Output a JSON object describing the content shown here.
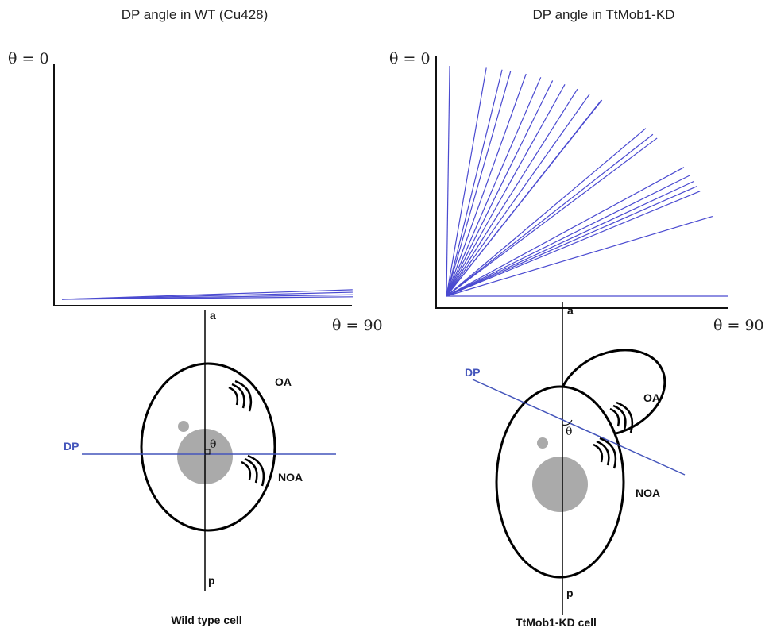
{
  "panels": [
    {
      "title": "DP angle in WT (Cu428)",
      "theta0_label": "θ = 0",
      "theta90_label": "θ = 90",
      "angles": [
        88.1,
        88.6,
        89.1,
        89.5
      ]
    },
    {
      "title": "DP angle in TtMob1-KD",
      "theta0_label": "θ = 0",
      "theta90_label": "θ = 90",
      "angles": [
        0.8,
        9.9,
        13.8,
        15.9,
        19.7,
        23.3,
        26.2,
        29.2,
        32.3,
        35.3,
        38.3,
        38.4,
        49.9,
        51.9,
        53.1,
        61.5,
        63.6,
        65.1,
        66.3,
        67.5,
        73.3,
        90
      ]
    }
  ],
  "cells": [
    {
      "caption": "Wild type cell",
      "a": "a",
      "p": "p",
      "dp": "DP",
      "oa": "OA",
      "noa": "NOA",
      "theta": "θ"
    },
    {
      "caption": "TtMob1-KD cell",
      "a": "a",
      "p": "p",
      "dp": "DP",
      "oa": "OA",
      "noa": "NOA",
      "theta": "θ"
    }
  ]
}
